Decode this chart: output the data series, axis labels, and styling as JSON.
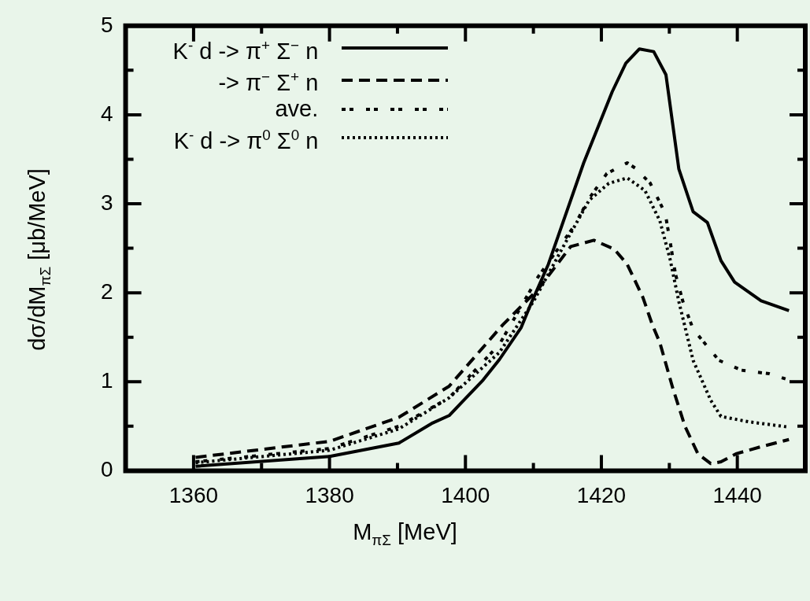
{
  "chart_data": {
    "type": "line",
    "xlabel": "M$_{πΣ}$ [MeV]",
    "ylabel": "dσ/dM$_{πΣ}$ [μb/MeV]",
    "xlim": [
      1350,
      1450
    ],
    "ylim": [
      0,
      5
    ],
    "xticks": [
      1360,
      {
        "value": 1370,
        "label": null
      },
      1380,
      {
        "value": 1390,
        "label": null
      },
      1400,
      {
        "value": 1410,
        "label": null
      },
      1420,
      {
        "value": 1430,
        "label": null
      },
      1440
    ],
    "yticks": [
      0,
      {
        "value": 0.5,
        "label": null
      },
      1,
      {
        "value": 1.5,
        "label": null
      },
      2,
      {
        "value": 2.5,
        "label": null
      },
      3,
      {
        "value": 3.5,
        "label": null
      },
      4,
      {
        "value": 4.5,
        "label": null
      },
      5
    ],
    "grid": false,
    "legend": "top left",
    "marker": "none",
    "series": [
      {
        "name": "K$^{-}$ d -> π$^{+}$ Σ$^{−}$ n",
        "color": "#000000",
        "line_style": "solid",
        "x": [
          1360.3,
          1380,
          1390.2,
          1395,
          1397.6,
          1402.6,
          1405,
          1408.2,
          1409.6,
          1412.2,
          1417.4,
          1421.6,
          1423.6,
          1425.6,
          1427.7,
          1429.5,
          1431.4,
          1433.5,
          1435.6,
          1437.6,
          1439.6,
          1443.5,
          1447.6
        ],
        "values": [
          0.05,
          0.16,
          0.31,
          0.53,
          0.62,
          1.02,
          1.25,
          1.61,
          1.87,
          2.32,
          3.46,
          4.26,
          4.58,
          4.74,
          4.71,
          4.45,
          3.39,
          2.91,
          2.79,
          2.36,
          2.12,
          1.91,
          1.8
        ]
      },
      {
        "name": "-> π$^{−}$ Σ$^{+}$ n",
        "color": "#000000",
        "line_style": "dashed",
        "x": [
          1360.3,
          1380,
          1390.2,
          1397.6,
          1405.5,
          1410.7,
          1415.5,
          1418.9,
          1421.9,
          1423.8,
          1426.1,
          1427.5,
          1428.6,
          1430.5,
          1432.3,
          1434.2,
          1436.1,
          1437.6,
          1439.8,
          1443.5,
          1447.6
        ],
        "values": [
          0.15,
          0.33,
          0.6,
          0.95,
          1.64,
          2.04,
          2.52,
          2.59,
          2.49,
          2.32,
          1.95,
          1.64,
          1.44,
          0.93,
          0.5,
          0.19,
          0.08,
          0.1,
          0.19,
          0.27,
          0.35
        ]
      },
      {
        "name": "ave.",
        "color": "#000000",
        "line_style": "dashdot",
        "x": [
          1360.3,
          1380,
          1390.2,
          1397.6,
          1405,
          1410.7,
          1416,
          1418.2,
          1420.8,
          1423.8,
          1425,
          1427.2,
          1429.4,
          1430.1,
          1430.9,
          1432,
          1433.5,
          1437.3,
          1440.6,
          1444.7,
          1447.6
        ],
        "values": [
          0.1,
          0.25,
          0.5,
          0.82,
          1.42,
          2.18,
          2.75,
          3.06,
          3.34,
          3.46,
          3.4,
          3.23,
          2.89,
          2.58,
          2.21,
          1.9,
          1.59,
          1.24,
          1.13,
          1.09,
          1.02
        ]
      },
      {
        "name": "K$^{-}$ d -> π$^{0}$ Σ$^{0}$ n",
        "color": "#000000",
        "line_style": "dotted",
        "x": [
          1360.3,
          1380,
          1390.2,
          1397.6,
          1405,
          1410,
          1414.4,
          1418.2,
          1421.1,
          1423.8,
          1426.4,
          1428.6,
          1430.1,
          1431.4,
          1433.5,
          1436.1,
          1437.6,
          1441.7,
          1447.6
        ],
        "values": [
          0.09,
          0.23,
          0.47,
          0.82,
          1.33,
          1.9,
          2.52,
          3.04,
          3.23,
          3.29,
          3.15,
          2.81,
          2.38,
          1.9,
          1.24,
          0.79,
          0.61,
          0.55,
          0.49
        ]
      }
    ]
  }
}
